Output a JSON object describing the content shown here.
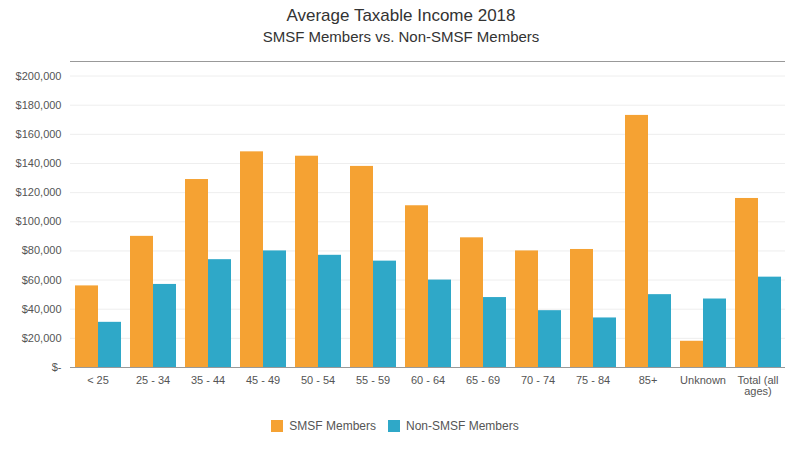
{
  "chart_data": {
    "type": "bar",
    "title": "Average Taxable Income 2018",
    "subtitle": "SMSF Members vs. Non-SMSF Members",
    "categories": [
      "< 25",
      "25 - 34",
      "35 - 44",
      "45 - 49",
      "50 - 54",
      "55 - 59",
      "60 - 64",
      "65 - 69",
      "70 - 74",
      "75 - 84",
      "85+",
      "Unknown",
      "Total (all\nages)"
    ],
    "series": [
      {
        "name": "SMSF Members",
        "color": "#F5A233",
        "values": [
          56000,
          90000,
          129000,
          148000,
          145000,
          138000,
          111000,
          89000,
          80000,
          81000,
          173000,
          18000,
          116000
        ]
      },
      {
        "name": "Non-SMSF Members",
        "color": "#2FA8C8",
        "values": [
          31000,
          57000,
          74000,
          80000,
          77000,
          73000,
          60000,
          48000,
          39000,
          34000,
          50000,
          47000,
          62000
        ]
      }
    ],
    "ylim": [
      0,
      210000
    ],
    "yticks": [
      {
        "value": 0,
        "label": "$-"
      },
      {
        "value": 20000,
        "label": "$20,000"
      },
      {
        "value": 40000,
        "label": "$40,000"
      },
      {
        "value": 60000,
        "label": "$60,000"
      },
      {
        "value": 80000,
        "label": "$80,000"
      },
      {
        "value": 100000,
        "label": "$100,000"
      },
      {
        "value": 120000,
        "label": "$120,000"
      },
      {
        "value": 140000,
        "label": "$140,000"
      },
      {
        "value": 160000,
        "label": "$160,000"
      },
      {
        "value": 180000,
        "label": "$180,000"
      },
      {
        "value": 200000,
        "label": "$200,000"
      }
    ],
    "grid": true,
    "legend": "bottom"
  }
}
